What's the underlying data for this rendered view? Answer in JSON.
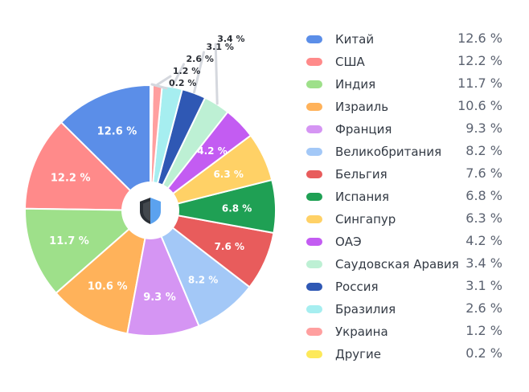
{
  "chart_data": {
    "type": "pie",
    "title": "",
    "center_icon": "shield-icon",
    "legend_position": "right",
    "value_unit": " %",
    "series": [
      {
        "values": [
          {
            "label": "Китай",
            "value": 12.6,
            "value_text": "12.6 %",
            "color": "#5b8ee8"
          },
          {
            "label": "США",
            "value": 12.2,
            "value_text": "12.2 %",
            "color": "#ff8a8a"
          },
          {
            "label": "Индия",
            "value": 11.7,
            "value_text": "11.7 %",
            "color": "#9ee08a"
          },
          {
            "label": "Израиль",
            "value": 10.6,
            "value_text": "10.6 %",
            "color": "#ffb25a"
          },
          {
            "label": "Франция",
            "value": 9.3,
            "value_text": "9.3 %",
            "color": "#d595f3"
          },
          {
            "label": "Великобритания",
            "value": 8.2,
            "value_text": "8.2 %",
            "color": "#a3c8f7"
          },
          {
            "label": "Бельгия",
            "value": 7.6,
            "value_text": "7.6 %",
            "color": "#e85c5c"
          },
          {
            "label": "Испания",
            "value": 6.8,
            "value_text": "6.8 %",
            "color": "#1fa054"
          },
          {
            "label": "Сингапур",
            "value": 6.3,
            "value_text": "6.3 %",
            "color": "#ffd166"
          },
          {
            "label": "ОАЭ",
            "value": 4.2,
            "value_text": "4.2 %",
            "color": "#c35cf2"
          },
          {
            "label": "Саудовская Аравия",
            "value": 3.4,
            "value_text": "3.4 %",
            "color": "#bdf0d4"
          },
          {
            "label": "Россия",
            "value": 3.1,
            "value_text": "3.1 %",
            "color": "#2f58b4"
          },
          {
            "label": "Бразилия",
            "value": 2.6,
            "value_text": "2.6 %",
            "color": "#a6eef0"
          },
          {
            "label": "Украина",
            "value": 1.2,
            "value_text": "1.2 %",
            "color": "#ff9f9f"
          },
          {
            "label": "Другие",
            "value": 0.2,
            "value_text": "0.2 %",
            "color": "#fde95a"
          }
        ]
      }
    ]
  }
}
